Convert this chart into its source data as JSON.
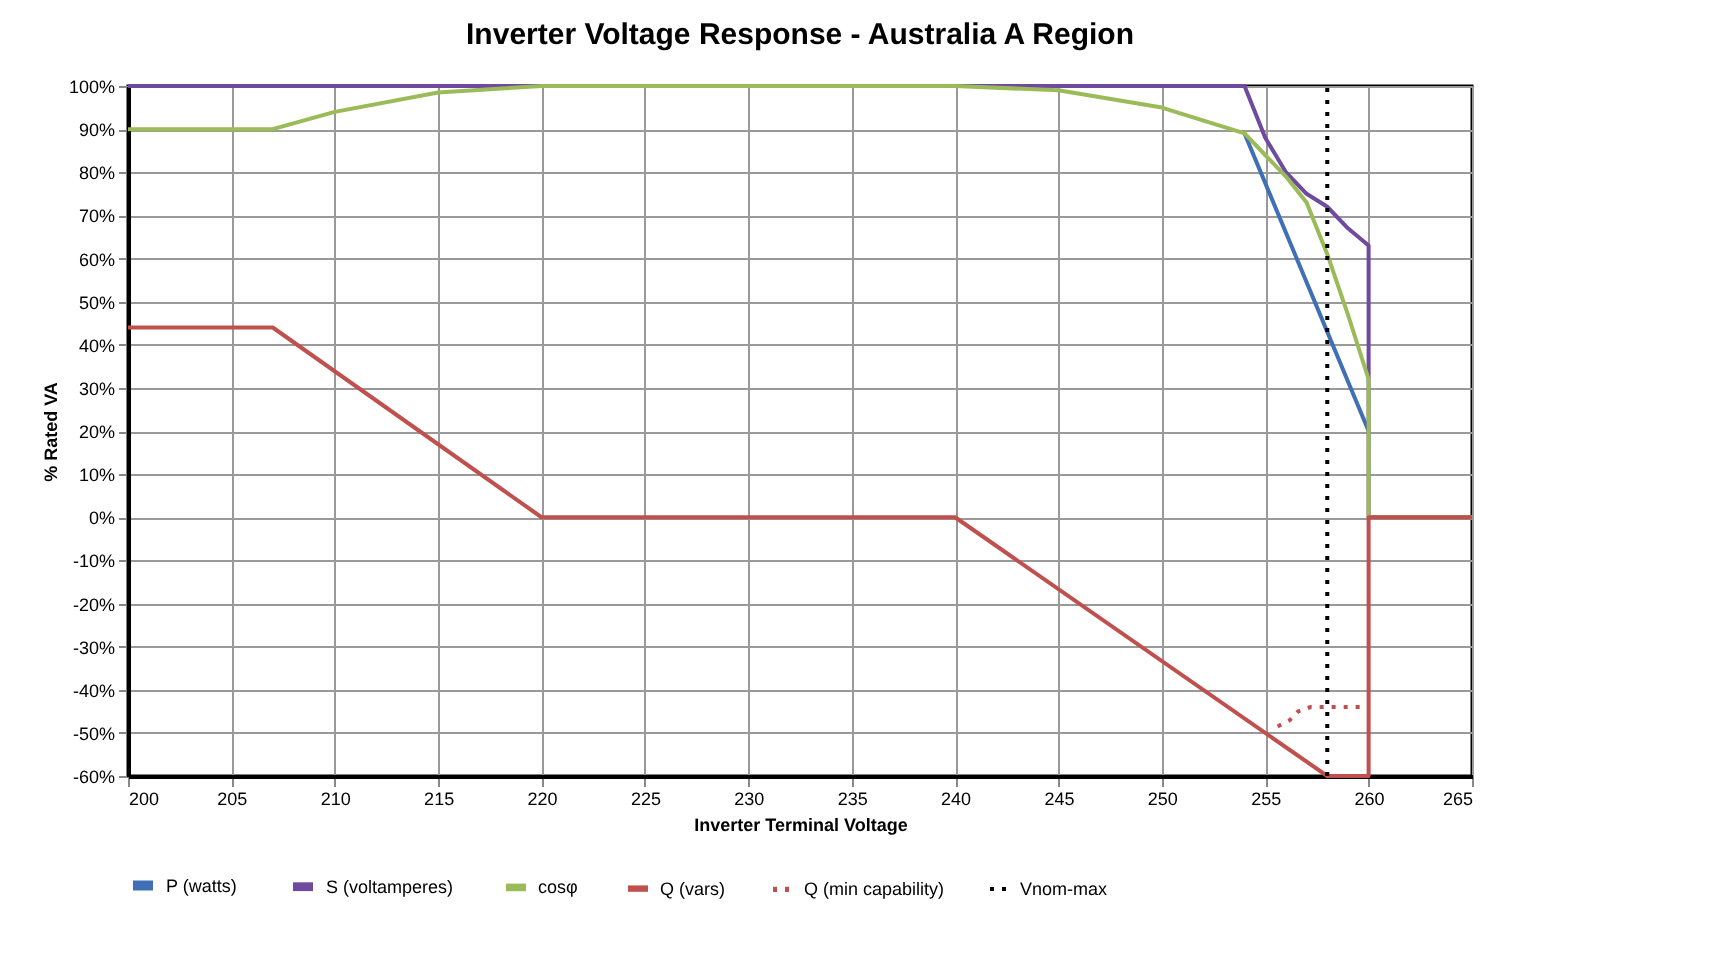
{
  "chart_data": {
    "type": "line",
    "title": "Inverter Voltage Response - Australia A Region",
    "xlabel": "Inverter Terminal Voltage",
    "ylabel": "% Rated VA",
    "xlim": [
      200,
      265
    ],
    "xticks": [
      200,
      205,
      210,
      215,
      220,
      225,
      230,
      235,
      240,
      245,
      250,
      255,
      260,
      265
    ],
    "ylim": [
      -60,
      100
    ],
    "yticks": [
      {
        "value": -60,
        "label": "-60%"
      },
      {
        "value": -50,
        "label": "-50%"
      },
      {
        "value": -40,
        "label": "-40%"
      },
      {
        "value": -30,
        "label": "-30%"
      },
      {
        "value": -20,
        "label": "-20%"
      },
      {
        "value": -10,
        "label": "-10%"
      },
      {
        "value": 0,
        "label": "0%"
      },
      {
        "value": 10,
        "label": "10%"
      },
      {
        "value": 20,
        "label": "20%"
      },
      {
        "value": 30,
        "label": "30%"
      },
      {
        "value": 40,
        "label": "40%"
      },
      {
        "value": 50,
        "label": "50%"
      },
      {
        "value": 60,
        "label": "60%"
      },
      {
        "value": 70,
        "label": "70%"
      },
      {
        "value": 80,
        "label": "80%"
      },
      {
        "value": 90,
        "label": "90%"
      },
      {
        "value": 100,
        "label": "100%"
      }
    ],
    "grid": true,
    "legend": "bottom",
    "marker": "none",
    "series": [
      {
        "name": "P (watts)",
        "color": "#3f6fb5",
        "line_style": "solid",
        "x": [
          254,
          260
        ],
        "values": [
          89,
          20
        ]
      },
      {
        "name": "S (voltamperes)",
        "color": "#6f4a9e",
        "line_style": "solid",
        "x": [
          200,
          254,
          255,
          256,
          257,
          258,
          259,
          260,
          260,
          265
        ],
        "values": [
          100,
          100,
          88,
          80,
          75,
          72,
          67,
          63,
          0,
          0
        ]
      },
      {
        "name": "cosφ",
        "color": "#9bbb59",
        "line_style": "solid",
        "x": [
          200,
          207,
          210,
          215,
          220,
          240,
          245,
          250,
          254,
          255,
          256,
          257,
          258,
          259,
          260,
          260,
          265
        ],
        "values": [
          90,
          90,
          94,
          98.5,
          100,
          100,
          99,
          95,
          89,
          84,
          79,
          73,
          61,
          47,
          32,
          0,
          0
        ]
      },
      {
        "name": "Q (vars)",
        "color": "#c0504d",
        "line_style": "solid",
        "x": [
          200,
          207,
          220,
          240,
          258,
          260,
          260,
          265
        ],
        "values": [
          44,
          44,
          0,
          0,
          -60,
          -60,
          0,
          0
        ]
      },
      {
        "name": "Q (min capability)",
        "color": "#c0504d",
        "line_style": "dotted",
        "x": [
          255.6,
          256.2,
          256.6,
          257.2,
          258,
          259,
          260
        ],
        "values": [
          -48.5,
          -47,
          -45,
          -44,
          -44,
          -44,
          -44
        ]
      },
      {
        "name": "Vnom-max",
        "color": "#000000",
        "line_style": "dotted",
        "x": [
          258,
          258
        ],
        "values": [
          -60,
          100
        ]
      }
    ]
  }
}
